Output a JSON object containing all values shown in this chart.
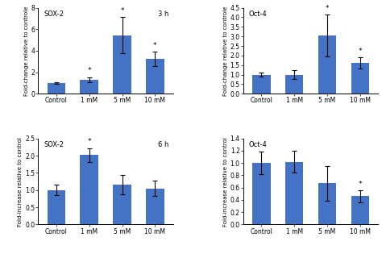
{
  "bar_color": "#4472c4",
  "bar_width": 0.55,
  "categories": [
    "Control",
    "1 mM",
    "5 mM",
    "10 mM"
  ],
  "fig_bg": "#ffffff",
  "plots": [
    {
      "title_left": "SOX-2",
      "title_right": "3 h",
      "ylabel": "Fold-change relative to controle",
      "ylim": [
        0,
        8
      ],
      "yticks": [
        0,
        2,
        4,
        6,
        8
      ],
      "values": [
        1.0,
        1.3,
        5.45,
        3.25
      ],
      "errors": [
        0.1,
        0.25,
        1.7,
        0.65
      ],
      "stars": [
        false,
        true,
        true,
        true
      ]
    },
    {
      "title_left": "Oct-4",
      "title_right": "",
      "ylabel": "Fold-change relative to controle",
      "ylim": [
        0,
        4.5
      ],
      "yticks": [
        0,
        0.5,
        1.0,
        1.5,
        2.0,
        2.5,
        3.0,
        3.5,
        4.0,
        4.5
      ],
      "values": [
        1.0,
        1.0,
        3.05,
        1.6
      ],
      "errors": [
        0.12,
        0.22,
        1.1,
        0.3
      ],
      "stars": [
        false,
        false,
        true,
        true
      ]
    },
    {
      "title_left": "SOX-2",
      "title_right": "6 h",
      "ylabel": "Fold-increase relative to control",
      "ylim": [
        0,
        2.5
      ],
      "yticks": [
        0,
        0.5,
        1.0,
        1.5,
        2.0,
        2.5
      ],
      "values": [
        1.0,
        2.02,
        1.15,
        1.05
      ],
      "errors": [
        0.15,
        0.2,
        0.28,
        0.22
      ],
      "stars": [
        false,
        true,
        false,
        false
      ]
    },
    {
      "title_left": "Oct-4",
      "title_right": "",
      "ylabel": "Fold-increase relative to control",
      "ylim": [
        0,
        1.4
      ],
      "yticks": [
        0,
        0.2,
        0.4,
        0.6,
        0.8,
        1.0,
        1.2,
        1.4
      ],
      "values": [
        1.0,
        1.02,
        0.67,
        0.46
      ],
      "errors": [
        0.18,
        0.18,
        0.28,
        0.1
      ],
      "stars": [
        false,
        false,
        false,
        true
      ]
    }
  ]
}
